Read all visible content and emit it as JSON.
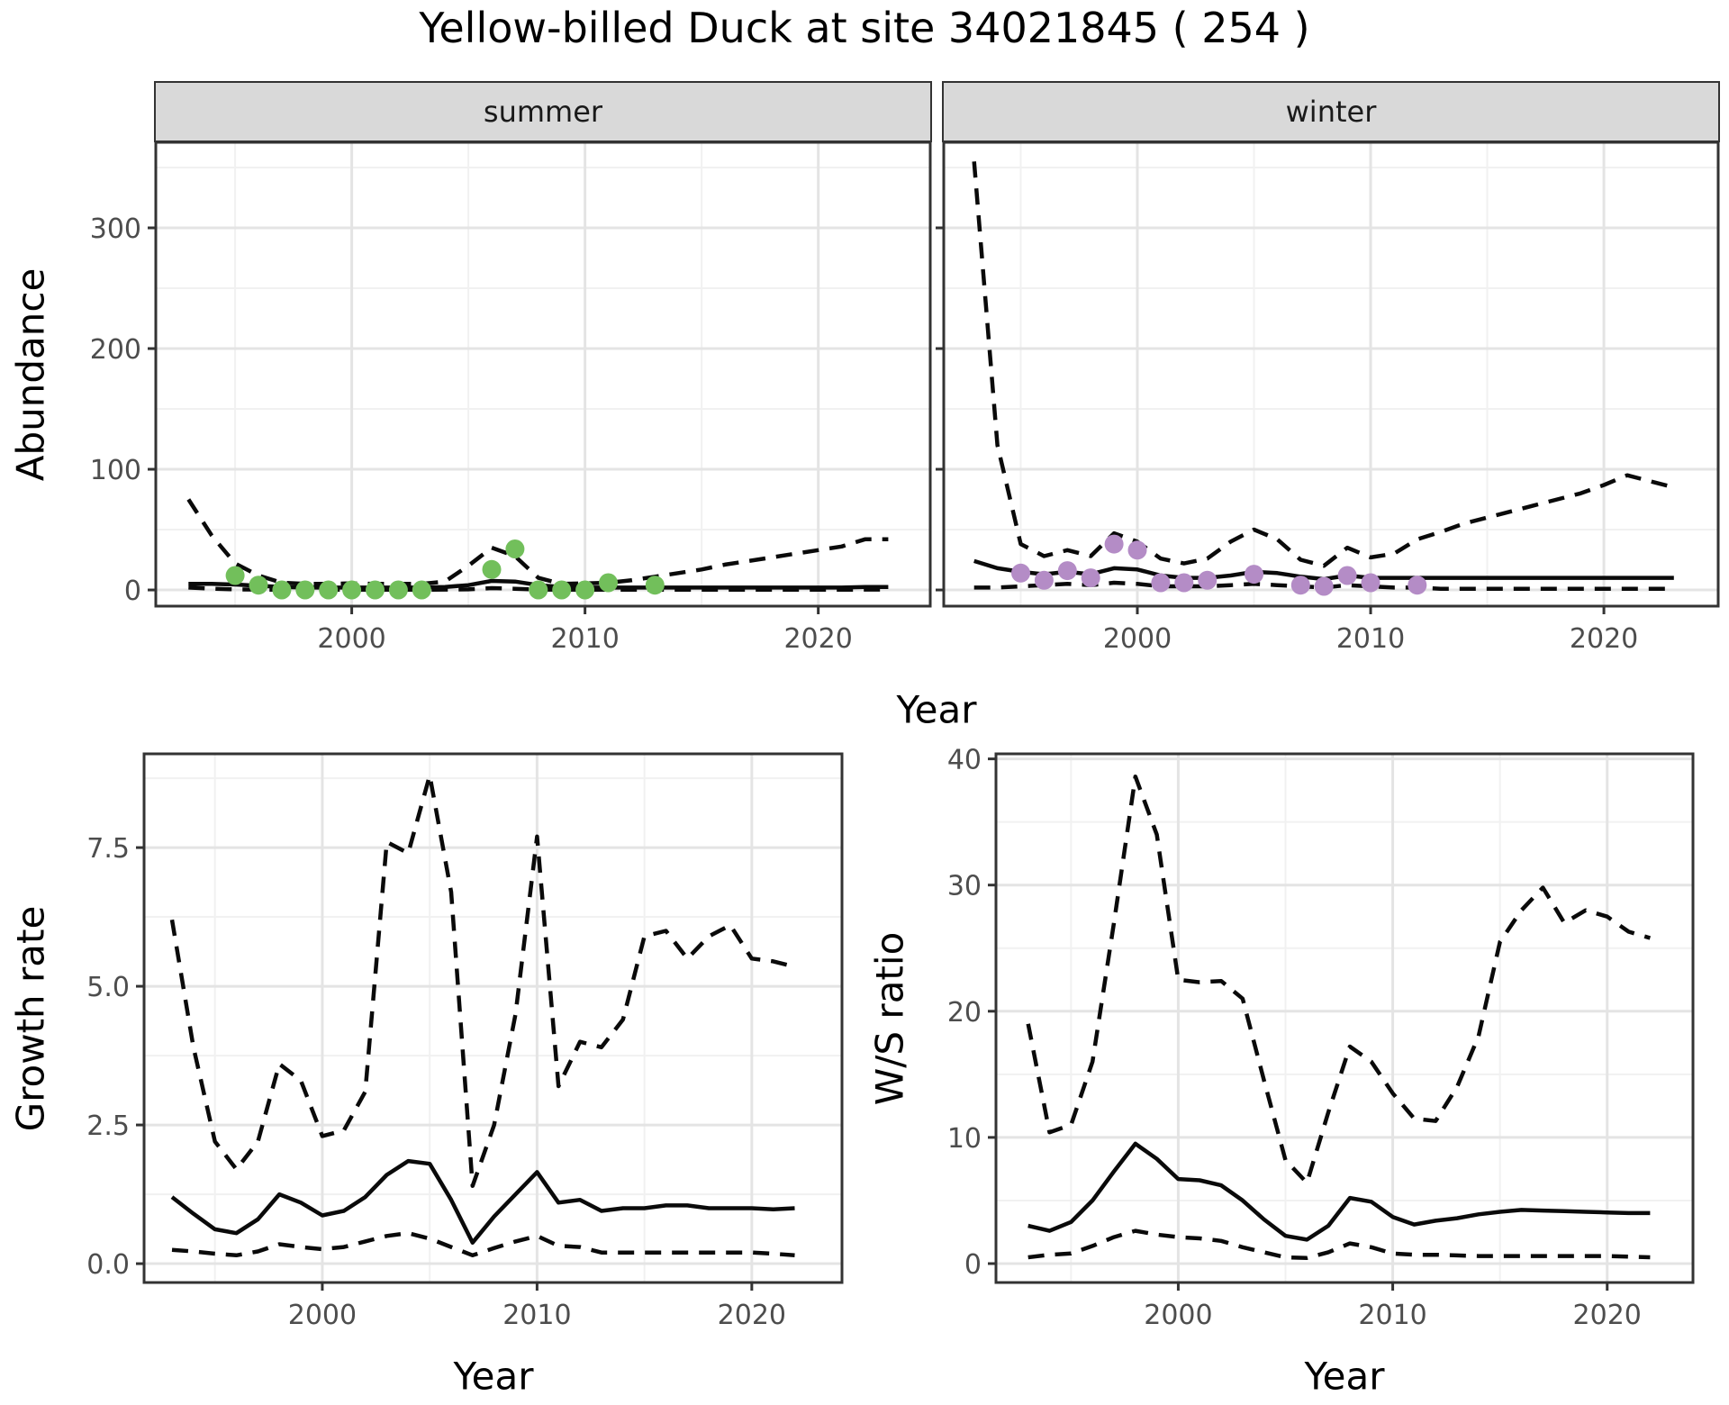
{
  "title": "Yellow-billed Duck at site 34021845 ( 254 )",
  "facets": {
    "summer": "summer",
    "winter": "winter"
  },
  "axis_labels": {
    "y_abundance": "Abundance",
    "y_growth": "Growth rate",
    "y_ws": "W/S ratio",
    "x_shared": "Year",
    "x_growth": "Year",
    "x_ws": "Year"
  },
  "colors": {
    "summer_points": "#72BF5B",
    "winter_points": "#B48CC6",
    "line": "#0A0A0A",
    "grid_major": "#E4E4E4",
    "grid_minor": "#F1F1F1",
    "panel_border": "#333333",
    "strip_bg": "#D9D9D9",
    "axis_text": "#4D4D4D"
  },
  "chart_data": [
    {
      "id": "abundance_summer",
      "type": "line",
      "facet_label": "summer",
      "xlabel": "Year",
      "ylabel": "Abundance",
      "x": [
        1993,
        1994,
        1995,
        1996,
        1997,
        1998,
        1999,
        2000,
        2001,
        2002,
        2003,
        2004,
        2005,
        2006,
        2007,
        2008,
        2009,
        2010,
        2011,
        2012,
        2013,
        2014,
        2015,
        2016,
        2017,
        2018,
        2019,
        2020,
        2021,
        2022,
        2023
      ],
      "series": [
        {
          "name": "fitted",
          "style": "solid",
          "values": [
            5,
            5,
            4.5,
            3.5,
            2.5,
            2,
            2,
            2,
            2,
            2,
            2,
            2.5,
            4,
            7.5,
            7,
            4,
            2.5,
            2,
            2,
            2,
            2,
            2,
            2,
            2,
            2,
            2,
            2,
            2,
            2,
            2.5,
            2.5
          ]
        },
        {
          "name": "upper_ci",
          "style": "dashed",
          "values": [
            75,
            45,
            22,
            12,
            6,
            5,
            5,
            5.5,
            5,
            5,
            5,
            7,
            20,
            35,
            28,
            10,
            5,
            5.5,
            6,
            8,
            11,
            14,
            17,
            21,
            24,
            27,
            30,
            33,
            36,
            42,
            42
          ]
        },
        {
          "name": "lower_ci",
          "style": "dashed",
          "values": [
            2,
            1,
            0.5,
            0.3,
            0.2,
            0.2,
            0.2,
            0.2,
            0.2,
            0.2,
            0.2,
            0.3,
            0.5,
            1.5,
            1,
            0.3,
            0.2,
            0.2,
            0.2,
            0.2,
            0.2,
            0.2,
            0.2,
            0.2,
            0.2,
            0.2,
            0.2,
            0.2,
            0.2,
            0.3,
            0.3
          ]
        }
      ],
      "points": {
        "name": "observed_counts",
        "color_key": "summer_points",
        "x": [
          1995,
          1996,
          1997,
          1998,
          1999,
          2000,
          2001,
          2002,
          2003,
          2006,
          2007,
          2008,
          2009,
          2010,
          2011,
          2013
        ],
        "y": [
          12,
          4,
          0,
          0,
          0,
          0,
          0,
          0,
          0,
          17,
          34,
          0,
          0,
          0,
          6,
          4
        ]
      },
      "xlim": [
        1991.6,
        2024.8
      ],
      "ylim": [
        -13.4,
        370.9
      ],
      "xticks": {
        "major": [
          2000,
          2010,
          2020
        ],
        "minor": [
          1995,
          2005,
          2015
        ]
      },
      "yticks": {
        "major": [
          0,
          100,
          200,
          300
        ],
        "minor": [
          50,
          150,
          250,
          350
        ]
      },
      "xtick_labels": [
        "2000",
        "2010",
        "2020"
      ],
      "ytick_labels": [
        "0",
        "100",
        "200",
        "300"
      ]
    },
    {
      "id": "abundance_winter",
      "type": "line",
      "facet_label": "winter",
      "xlabel": "Year",
      "ylabel": "Abundance",
      "x": [
        1993,
        1994,
        1995,
        1996,
        1997,
        1998,
        1999,
        2000,
        2001,
        2002,
        2003,
        2004,
        2005,
        2006,
        2007,
        2008,
        2009,
        2010,
        2011,
        2012,
        2013,
        2014,
        2015,
        2016,
        2017,
        2018,
        2019,
        2020,
        2021,
        2022,
        2023
      ],
      "series": [
        {
          "name": "fitted",
          "style": "solid",
          "values": [
            24,
            18,
            15,
            13,
            15,
            13,
            18,
            17,
            12,
            10,
            10,
            12,
            15,
            14,
            11,
            9,
            12,
            10,
            10,
            10,
            10,
            10,
            10,
            10,
            10,
            10,
            10,
            10,
            10,
            10,
            10
          ]
        },
        {
          "name": "upper_ci",
          "style": "dashed",
          "values": [
            355,
            120,
            38,
            28,
            33,
            28,
            47,
            40,
            26,
            22,
            26,
            40,
            50,
            42,
            25,
            20,
            35,
            27,
            30,
            42,
            48,
            55,
            60,
            65,
            70,
            75,
            80,
            87,
            95,
            90,
            85
          ]
        },
        {
          "name": "lower_ci",
          "style": "dashed",
          "values": [
            2,
            2,
            3,
            4,
            5,
            4,
            6,
            5,
            3,
            3,
            3,
            4,
            5,
            4,
            3,
            2,
            4,
            3,
            2,
            2,
            1,
            1,
            1,
            1,
            1,
            1,
            1,
            1,
            1,
            1,
            1
          ]
        }
      ],
      "points": {
        "name": "observed_counts",
        "color_key": "winter_points",
        "x": [
          1995,
          1996,
          1997,
          1998,
          1999,
          2000,
          2001,
          2002,
          2003,
          2005,
          2007,
          2008,
          2009,
          2010,
          2012
        ],
        "y": [
          14,
          8,
          16,
          10,
          38,
          33,
          6,
          6,
          8,
          13,
          4,
          3,
          12,
          6,
          4
        ]
      },
      "xlim": [
        1991.7,
        2024.9
      ],
      "ylim": [
        -13.4,
        370.9
      ],
      "xticks": {
        "major": [
          2000,
          2010,
          2020
        ],
        "minor": [
          1995,
          2005,
          2015
        ]
      },
      "yticks": {
        "major": [
          0,
          100,
          200,
          300
        ],
        "minor": [
          50,
          150,
          250,
          350
        ]
      },
      "xtick_labels": [
        "2000",
        "2010",
        "2020"
      ],
      "ytick_labels": []
    },
    {
      "id": "growth_rate",
      "type": "line",
      "facet_label": "",
      "xlabel": "Year",
      "ylabel": "Growth rate",
      "x": [
        1993,
        1994,
        1995,
        1996,
        1997,
        1998,
        1999,
        2000,
        2001,
        2002,
        2003,
        2004,
        2005,
        2006,
        2007,
        2008,
        2009,
        2010,
        2011,
        2012,
        2013,
        2014,
        2015,
        2016,
        2017,
        2018,
        2019,
        2020,
        2021,
        2022
      ],
      "series": [
        {
          "name": "fitted",
          "style": "solid",
          "values": [
            1.2,
            0.9,
            0.62,
            0.55,
            0.8,
            1.25,
            1.1,
            0.87,
            0.95,
            1.2,
            1.6,
            1.85,
            1.8,
            1.15,
            0.38,
            0.85,
            1.25,
            1.65,
            1.1,
            1.15,
            0.95,
            1.0,
            1.0,
            1.05,
            1.05,
            1.0,
            1.0,
            1.0,
            0.98,
            1.0
          ]
        },
        {
          "name": "upper_ci",
          "style": "dashed",
          "values": [
            6.2,
            3.9,
            2.2,
            1.7,
            2.2,
            3.6,
            3.3,
            2.3,
            2.4,
            3.1,
            7.6,
            7.4,
            8.8,
            6.7,
            1.4,
            2.5,
            4.5,
            7.7,
            3.2,
            4.0,
            3.9,
            4.4,
            5.9,
            6.0,
            5.5,
            5.9,
            6.1,
            5.5,
            5.45,
            5.35
          ]
        },
        {
          "name": "lower_ci",
          "style": "dashed",
          "values": [
            0.25,
            0.22,
            0.18,
            0.15,
            0.22,
            0.35,
            0.3,
            0.26,
            0.3,
            0.4,
            0.5,
            0.55,
            0.45,
            0.3,
            0.15,
            0.28,
            0.4,
            0.5,
            0.32,
            0.3,
            0.2,
            0.2,
            0.2,
            0.2,
            0.2,
            0.2,
            0.2,
            0.2,
            0.18,
            0.15
          ]
        }
      ],
      "points": null,
      "xlim": [
        1991.7,
        2024.2
      ],
      "ylim": [
        -0.34,
        9.19
      ],
      "xticks": {
        "major": [
          2000,
          2010,
          2020
        ],
        "minor": [
          1995,
          2005,
          2015
        ]
      },
      "yticks": {
        "major": [
          0,
          2.5,
          5,
          7.5
        ],
        "minor": [
          1.25,
          3.75,
          6.25,
          8.75
        ]
      },
      "xtick_labels": [
        "2000",
        "2010",
        "2020"
      ],
      "ytick_labels": [
        "0.0",
        "2.5",
        "5.0",
        "7.5"
      ]
    },
    {
      "id": "ws_ratio",
      "type": "line",
      "facet_label": "",
      "xlabel": "Year",
      "ylabel": "W/S ratio",
      "x": [
        1993,
        1994,
        1995,
        1996,
        1997,
        1998,
        1999,
        2000,
        2001,
        2002,
        2003,
        2004,
        2005,
        2006,
        2007,
        2008,
        2009,
        2010,
        2011,
        2012,
        2013,
        2014,
        2015,
        2016,
        2017,
        2018,
        2019,
        2020,
        2021,
        2022
      ],
      "series": [
        {
          "name": "fitted",
          "style": "solid",
          "values": [
            3.0,
            2.6,
            3.3,
            5.0,
            7.3,
            9.5,
            8.3,
            6.7,
            6.6,
            6.2,
            5.0,
            3.5,
            2.2,
            1.9,
            3.0,
            5.2,
            4.9,
            3.7,
            3.1,
            3.4,
            3.6,
            3.9,
            4.1,
            4.25,
            4.2,
            4.15,
            4.1,
            4.05,
            4.0,
            4.0
          ]
        },
        {
          "name": "upper_ci",
          "style": "dashed",
          "values": [
            19,
            10.4,
            11,
            16,
            27,
            38.6,
            34,
            22.5,
            22.3,
            22.4,
            21,
            14.5,
            8.2,
            6.4,
            12,
            17.2,
            16,
            13.5,
            11.5,
            11.3,
            14,
            18,
            25.5,
            28,
            29.8,
            27,
            28,
            27.5,
            26.3,
            25.8
          ]
        },
        {
          "name": "lower_ci",
          "style": "dashed",
          "values": [
            0.5,
            0.7,
            0.8,
            1.4,
            2.1,
            2.6,
            2.3,
            2.1,
            2.0,
            1.8,
            1.3,
            0.9,
            0.5,
            0.45,
            0.9,
            1.6,
            1.3,
            0.8,
            0.7,
            0.7,
            0.65,
            0.6,
            0.6,
            0.6,
            0.6,
            0.6,
            0.6,
            0.6,
            0.55,
            0.5
          ]
        }
      ],
      "points": null,
      "xlim": [
        1991.5,
        2024.0
      ],
      "ylim": [
        -1.5,
        40.4
      ],
      "xticks": {
        "major": [
          2000,
          2010,
          2020
        ],
        "minor": [
          1995,
          2005,
          2015
        ]
      },
      "yticks": {
        "major": [
          0,
          10,
          20,
          30,
          40
        ],
        "minor": [
          5,
          15,
          25,
          35
        ]
      },
      "xtick_labels": [
        "2000",
        "2010",
        "2020"
      ],
      "ytick_labels": [
        "0",
        "10",
        "20",
        "30",
        "40"
      ]
    }
  ]
}
